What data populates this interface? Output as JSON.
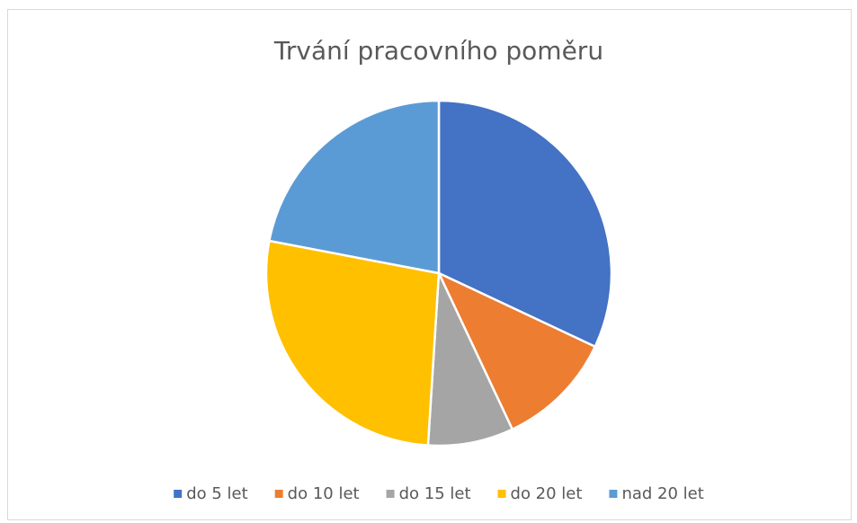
{
  "chart_data": {
    "type": "pie",
    "title": "Trvání pracovního poměru",
    "categories": [
      "do 5 let",
      "do 10 let",
      "do 15 let",
      "do 20 let",
      "nad 20 let"
    ],
    "values": [
      32,
      11,
      8,
      27,
      22
    ],
    "colors": [
      "#4472c4",
      "#ed7d31",
      "#a5a5a5",
      "#ffc000",
      "#5b9bd5"
    ],
    "legend": "bottom"
  }
}
